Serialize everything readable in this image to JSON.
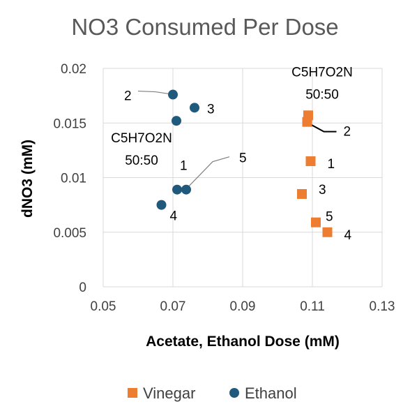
{
  "chart_data": {
    "type": "scatter",
    "title": "NO3 Consumed Per Dose",
    "xlabel": "Acetate, Ethanol Dose (mM)",
    "ylabel": "dNO3 (mM)",
    "xlim": [
      0.05,
      0.13
    ],
    "ylim": [
      0,
      0.02
    ],
    "x_ticks": [
      "0.05",
      "0.07",
      "0.09",
      "0.11",
      "0.13"
    ],
    "y_ticks": [
      "0",
      "0.005",
      "0.01",
      "0.015",
      "0.02"
    ],
    "grid": true,
    "legend_position": "bottom",
    "series": [
      {
        "name": "Vinegar",
        "color": "#ed7d31",
        "marker": "square",
        "points": [
          {
            "x": 0.1095,
            "y": 0.0115,
            "label": "1"
          },
          {
            "x": 0.1085,
            "y": 0.0151,
            "label": "2"
          },
          {
            "x": 0.107,
            "y": 0.0085,
            "label": "3"
          },
          {
            "x": 0.1143,
            "y": 0.005,
            "label": "4"
          },
          {
            "x": 0.111,
            "y": 0.0059,
            "label": "5"
          },
          {
            "x": 0.1088,
            "y": 0.0157,
            "label": "C5H7O2N 50:50"
          }
        ]
      },
      {
        "name": "Ethanol",
        "color": "#1f5a7c",
        "marker": "circle",
        "points": [
          {
            "x": 0.0712,
            "y": 0.0089,
            "label": "1"
          },
          {
            "x": 0.07,
            "y": 0.0176,
            "label": "2"
          },
          {
            "x": 0.0762,
            "y": 0.0164,
            "label": "3"
          },
          {
            "x": 0.0667,
            "y": 0.0075,
            "label": "4"
          },
          {
            "x": 0.0738,
            "y": 0.0089,
            "label": "5"
          },
          {
            "x": 0.071,
            "y": 0.0152,
            "label": "C5H7O2N 50:50"
          }
        ]
      }
    ]
  }
}
